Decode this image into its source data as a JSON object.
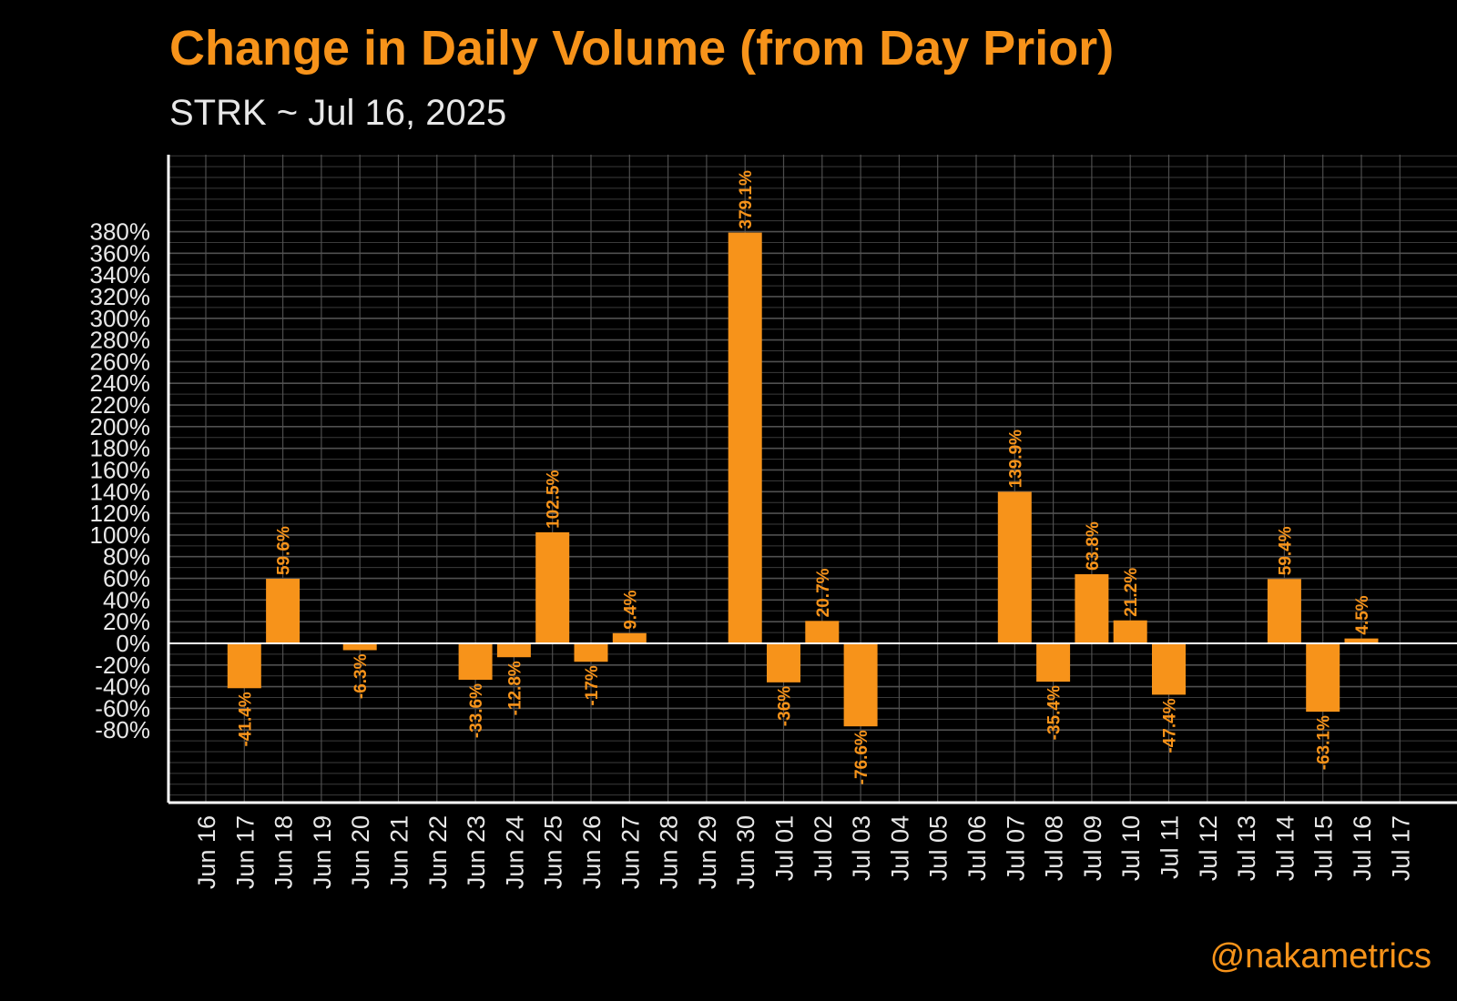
{
  "title": "Change in Daily Volume (from Day Prior)",
  "subtitle": "STRK ~ Jul 16, 2025",
  "watermark": "@nakametrics",
  "colors": {
    "background": "#000000",
    "bar": "#F7931A",
    "label": "#F7931A",
    "axis": "#ffffff",
    "grid": "#555555",
    "tick_text": "#e8e8e8"
  },
  "chart_data": {
    "type": "bar",
    "categories": [
      "Jun 16",
      "Jun 17",
      "Jun 18",
      "Jun 19",
      "Jun 20",
      "Jun 21",
      "Jun 22",
      "Jun 23",
      "Jun 24",
      "Jun 25",
      "Jun 26",
      "Jun 27",
      "Jun 28",
      "Jun 29",
      "Jun 30",
      "Jul 01",
      "Jul 02",
      "Jul 03",
      "Jul 04",
      "Jul 05",
      "Jul 06",
      "Jul 07",
      "Jul 08",
      "Jul 09",
      "Jul 10",
      "Jul 11",
      "Jul 12",
      "Jul 13",
      "Jul 14",
      "Jul 15",
      "Jul 16",
      "Jul 17"
    ],
    "values": [
      null,
      -41.4,
      59.6,
      null,
      -6.3,
      null,
      null,
      -33.6,
      -12.8,
      102.5,
      -17,
      9.4,
      null,
      null,
      379.1,
      -36,
      20.7,
      -76.6,
      null,
      null,
      null,
      139.9,
      -35.4,
      63.8,
      21.2,
      -47.4,
      null,
      null,
      59.4,
      -63.1,
      4.5,
      null
    ],
    "data_labels": [
      null,
      "-41.4%",
      "59.6%",
      null,
      "-6.3%",
      null,
      null,
      "-33.6%",
      "-12.8%",
      "102.5%",
      "-17%",
      "9.4%",
      null,
      null,
      "379.1%",
      "-36%",
      "20.7%",
      "-76.6%",
      null,
      null,
      null,
      "139.9%",
      "-35.4%",
      "63.8%",
      "21.2%",
      "-47.4%",
      null,
      null,
      "59.4%",
      "-63.1%",
      "4.5%",
      null
    ],
    "yticks": [
      -80,
      -60,
      -40,
      -20,
      0,
      20,
      40,
      60,
      80,
      100,
      120,
      140,
      160,
      180,
      200,
      220,
      240,
      260,
      280,
      300,
      320,
      340,
      360,
      380
    ],
    "ytick_labels": [
      "-80%",
      "-60%",
      "-40%",
      "-20%",
      "0%",
      "20%",
      "40%",
      "60%",
      "80%",
      "100%",
      "120%",
      "140%",
      "160%",
      "180%",
      "200%",
      "220%",
      "240%",
      "260%",
      "280%",
      "300%",
      "320%",
      "340%",
      "360%",
      "380%"
    ],
    "ylim": [
      -147,
      451
    ],
    "minor_step": 10,
    "grid": true,
    "xlabel": "",
    "ylabel": ""
  }
}
